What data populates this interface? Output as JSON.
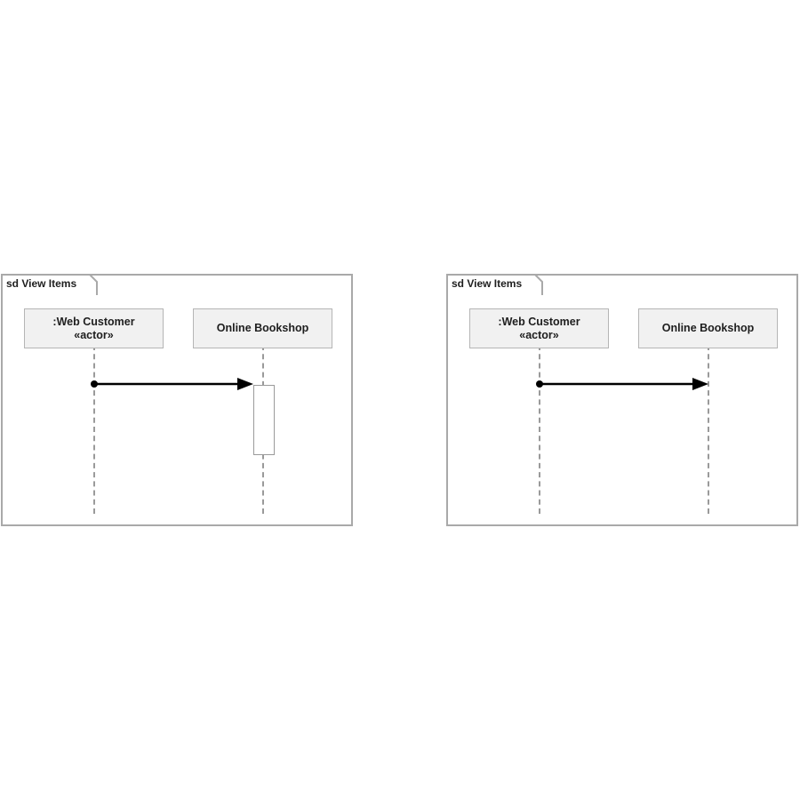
{
  "diagrams": [
    {
      "frame_label": "sd View Items",
      "lifelines": [
        {
          "line1": ":Web Customer",
          "line2": "«actor»"
        },
        {
          "line1": "Online Bookshop",
          "line2": ""
        }
      ],
      "message_label": "",
      "has_activation": true
    },
    {
      "frame_label": "sd View Items",
      "lifelines": [
        {
          "line1": ":Web Customer",
          "line2": "«actor»"
        },
        {
          "line1": "Online Bookshop",
          "line2": ""
        }
      ],
      "message_label": "",
      "has_activation": false
    }
  ],
  "colors": {
    "frame_border": "#a9a9a9",
    "lifeline_fill": "#f1f1f1",
    "message_line": "#000000"
  }
}
